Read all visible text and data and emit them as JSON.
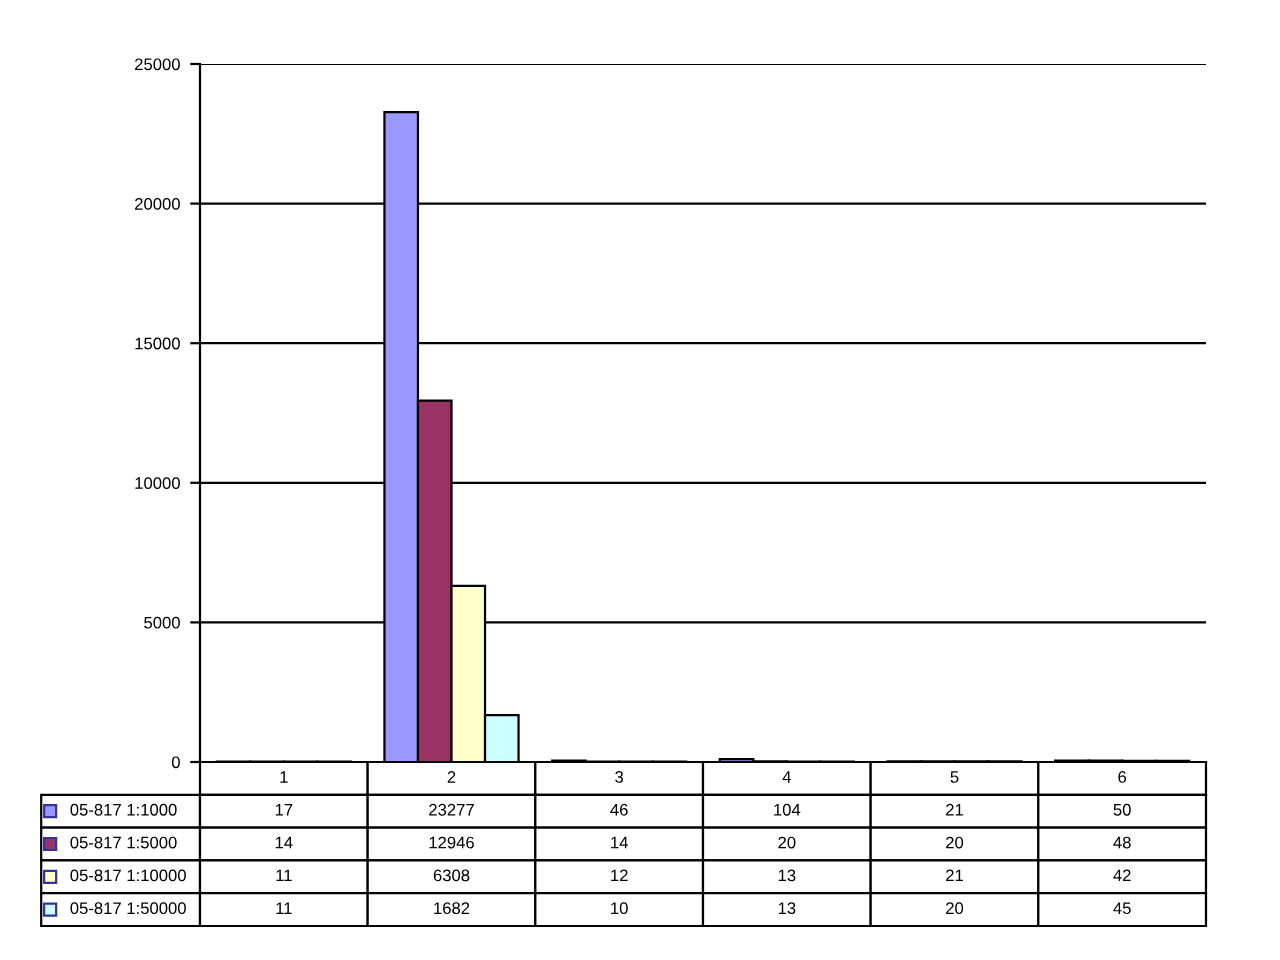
{
  "chart_data": {
    "type": "bar",
    "categories": [
      "1",
      "2",
      "3",
      "4",
      "5",
      "6"
    ],
    "series": [
      {
        "name": "05-817 1:1000",
        "color": "#9999ff",
        "values": [
          17,
          23277,
          46,
          104,
          21,
          50
        ]
      },
      {
        "name": "05-817 1:5000",
        "color": "#993366",
        "values": [
          14,
          12946,
          14,
          20,
          20,
          48
        ]
      },
      {
        "name": "05-817 1:10000",
        "color": "#ffffcc",
        "values": [
          11,
          6308,
          12,
          13,
          21,
          42
        ]
      },
      {
        "name": "05-817 1:50000",
        "color": "#ccffff",
        "values": [
          11,
          1682,
          10,
          13,
          20,
          45
        ]
      }
    ],
    "ylim": [
      0,
      25000
    ],
    "yticks": [
      0,
      5000,
      10000,
      15000,
      20000,
      25000
    ],
    "grid": "y",
    "legend": "bottom left",
    "data_labels": true
  }
}
